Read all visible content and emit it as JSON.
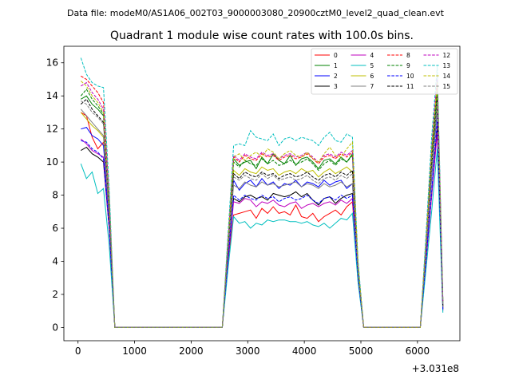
{
  "header": {
    "data_file": "Data file: modeM0/AS1A06_002T03_9000003080_20900cztM0_level2_quad_clean.evt"
  },
  "chart_data": {
    "type": "line",
    "title": "Quadrant 1 module wise count rates with 100.0s bins.",
    "xlabel": "",
    "ylabel": "",
    "x_offset_label": "+3.031e8",
    "xlim": [
      -250,
      6750
    ],
    "ylim": [
      -0.8,
      17.0
    ],
    "xticks": [
      0,
      1000,
      2000,
      3000,
      4000,
      5000,
      6000
    ],
    "yticks": [
      0,
      2,
      4,
      6,
      8,
      10,
      12,
      14,
      16
    ],
    "legend_position": "upper-right",
    "x": [
      50,
      150,
      250,
      350,
      450,
      550,
      650,
      750,
      850,
      950,
      1050,
      1150,
      1250,
      1350,
      1450,
      1550,
      1650,
      1750,
      1850,
      1950,
      2050,
      2150,
      2250,
      2350,
      2450,
      2550,
      2650,
      2750,
      2850,
      2950,
      3050,
      3150,
      3250,
      3350,
      3450,
      3550,
      3650,
      3750,
      3850,
      3950,
      4050,
      4150,
      4250,
      4350,
      4450,
      4550,
      4650,
      4750,
      4850,
      4950,
      5050,
      5150,
      5250,
      5350,
      5450,
      5550,
      5650,
      5750,
      5850,
      5950,
      6050,
      6150,
      6250,
      6350,
      6450
    ],
    "series": [
      {
        "name": "0",
        "color": "#ff0000",
        "dash": "solid",
        "values": [
          13.0,
          12.8,
          11.5,
          10.8,
          11.2,
          7.0,
          0,
          0,
          0,
          0,
          0,
          0,
          0,
          0,
          0,
          0,
          0,
          0,
          0,
          0,
          0,
          0,
          0,
          0,
          0,
          0,
          4.0,
          6.8,
          6.9,
          7.0,
          7.1,
          6.6,
          7.2,
          6.9,
          7.3,
          6.9,
          7.0,
          6.8,
          7.4,
          6.7,
          6.6,
          6.9,
          6.4,
          6.7,
          6.9,
          7.1,
          6.8,
          7.3,
          7.6,
          3.0,
          0,
          0,
          0,
          0,
          0,
          0,
          0,
          0,
          0,
          0,
          0,
          4.0,
          8.0,
          12.3,
          1.2
        ]
      },
      {
        "name": "1",
        "color": "#008000",
        "dash": "solid",
        "values": [
          13.8,
          14.0,
          13.5,
          13.2,
          12.8,
          7.0,
          0,
          0,
          0,
          0,
          0,
          0,
          0,
          0,
          0,
          0,
          0,
          0,
          0,
          0,
          0,
          0,
          0,
          0,
          0,
          0,
          5.0,
          10.2,
          9.8,
          10.0,
          10.1,
          9.6,
          10.3,
          9.9,
          10.5,
          10.1,
          9.9,
          10.4,
          9.8,
          10.2,
          10.3,
          10.0,
          9.6,
          10.1,
          10.2,
          9.9,
          10.3,
          10.0,
          10.5,
          3.5,
          0,
          0,
          0,
          0,
          0,
          0,
          0,
          0,
          0,
          0,
          0,
          5.0,
          10.5,
          14.5,
          1.5
        ]
      },
      {
        "name": "2",
        "color": "#0000ff",
        "dash": "solid",
        "values": [
          12.0,
          12.1,
          11.6,
          11.4,
          11.0,
          6.5,
          0,
          0,
          0,
          0,
          0,
          0,
          0,
          0,
          0,
          0,
          0,
          0,
          0,
          0,
          0,
          0,
          0,
          0,
          0,
          0,
          4.5,
          8.9,
          8.3,
          8.7,
          8.9,
          8.5,
          9.0,
          8.6,
          8.8,
          8.4,
          8.7,
          8.6,
          8.9,
          8.5,
          8.8,
          8.7,
          8.5,
          8.9,
          8.6,
          8.8,
          8.9,
          8.4,
          8.7,
          3.2,
          0,
          0,
          0,
          0,
          0,
          0,
          0,
          0,
          0,
          0,
          0,
          4.5,
          9.0,
          13.2,
          1.3
        ]
      },
      {
        "name": "3",
        "color": "#000000",
        "dash": "solid",
        "values": [
          10.7,
          10.9,
          10.5,
          10.3,
          10.0,
          6.0,
          0,
          0,
          0,
          0,
          0,
          0,
          0,
          0,
          0,
          0,
          0,
          0,
          0,
          0,
          0,
          0,
          0,
          0,
          0,
          0,
          4.0,
          7.8,
          7.6,
          7.9,
          8.0,
          7.8,
          7.9,
          7.7,
          8.1,
          8.0,
          7.9,
          8.0,
          8.2,
          7.9,
          8.1,
          7.7,
          7.4,
          7.8,
          7.9,
          7.5,
          7.8,
          8.0,
          8.1,
          3.0,
          0,
          0,
          0,
          0,
          0,
          0,
          0,
          0,
          0,
          0,
          0,
          4.0,
          8.0,
          12.0,
          1.1
        ]
      },
      {
        "name": "4",
        "color": "#bf00bf",
        "dash": "solid",
        "values": [
          11.4,
          11.1,
          10.7,
          10.5,
          10.3,
          6.0,
          0,
          0,
          0,
          0,
          0,
          0,
          0,
          0,
          0,
          0,
          0,
          0,
          0,
          0,
          0,
          0,
          0,
          0,
          0,
          0,
          4.0,
          7.6,
          7.5,
          7.8,
          7.7,
          7.3,
          7.6,
          7.5,
          7.7,
          7.4,
          7.3,
          7.5,
          7.6,
          7.2,
          7.4,
          7.5,
          7.3,
          7.5,
          7.6,
          7.4,
          7.7,
          7.5,
          7.8,
          2.9,
          0,
          0,
          0,
          0,
          0,
          0,
          0,
          0,
          0,
          0,
          0,
          4.0,
          7.9,
          11.8,
          1.0
        ]
      },
      {
        "name": "5",
        "color": "#00bfbf",
        "dash": "solid",
        "values": [
          9.9,
          9.0,
          9.4,
          8.1,
          8.4,
          5.0,
          0,
          0,
          0,
          0,
          0,
          0,
          0,
          0,
          0,
          0,
          0,
          0,
          0,
          0,
          0,
          0,
          0,
          0,
          0,
          0,
          3.5,
          6.7,
          6.3,
          6.4,
          6.0,
          6.3,
          6.2,
          6.5,
          6.4,
          6.5,
          6.5,
          6.4,
          6.4,
          6.3,
          6.4,
          6.2,
          6.1,
          6.3,
          6.0,
          6.3,
          6.6,
          6.5,
          6.9,
          2.7,
          0,
          0,
          0,
          0,
          0,
          0,
          0,
          0,
          0,
          0,
          0,
          3.5,
          7.0,
          10.8,
          0.9
        ]
      },
      {
        "name": "6",
        "color": "#bfbf00",
        "dash": "solid",
        "values": [
          13.0,
          12.6,
          12.2,
          11.9,
          11.5,
          6.8,
          0,
          0,
          0,
          0,
          0,
          0,
          0,
          0,
          0,
          0,
          0,
          0,
          0,
          0,
          0,
          0,
          0,
          0,
          0,
          0,
          4.8,
          9.5,
          9.2,
          9.6,
          9.4,
          9.3,
          9.7,
          9.5,
          9.6,
          9.2,
          9.4,
          9.5,
          9.3,
          9.6,
          9.4,
          9.5,
          9.1,
          9.4,
          9.6,
          9.3,
          9.5,
          9.7,
          9.4,
          3.4,
          0,
          0,
          0,
          0,
          0,
          0,
          0,
          0,
          0,
          0,
          0,
          4.8,
          9.6,
          13.6,
          1.3
        ]
      },
      {
        "name": "7",
        "color": "#808080",
        "dash": "solid",
        "values": [
          13.2,
          12.8,
          12.4,
          12.0,
          11.6,
          6.9,
          0,
          0,
          0,
          0,
          0,
          0,
          0,
          0,
          0,
          0,
          0,
          0,
          0,
          0,
          0,
          0,
          0,
          0,
          0,
          0,
          4.6,
          8.6,
          8.4,
          8.8,
          8.6,
          8.5,
          8.8,
          8.6,
          8.7,
          8.5,
          8.6,
          8.7,
          8.8,
          8.5,
          8.7,
          8.6,
          8.4,
          8.7,
          8.5,
          8.6,
          8.8,
          8.5,
          8.7,
          3.3,
          0,
          0,
          0,
          0,
          0,
          0,
          0,
          0,
          0,
          0,
          0,
          4.6,
          9.2,
          13.4,
          1.2
        ]
      },
      {
        "name": "8",
        "color": "#ff0000",
        "dash": "dashed",
        "values": [
          15.2,
          15.0,
          14.6,
          14.2,
          13.6,
          8.0,
          0,
          0,
          0,
          0,
          0,
          0,
          0,
          0,
          0,
          0,
          0,
          0,
          0,
          0,
          0,
          0,
          0,
          0,
          0,
          0,
          5.2,
          10.3,
          10.0,
          10.4,
          10.2,
          10.1,
          10.5,
          10.3,
          10.4,
          10.1,
          10.3,
          10.4,
          10.2,
          10.3,
          10.5,
          10.2,
          9.9,
          10.3,
          10.4,
          10.2,
          10.5,
          10.3,
          10.6,
          3.7,
          0,
          0,
          0,
          0,
          0,
          0,
          0,
          0,
          0,
          0,
          0,
          5.2,
          10.8,
          15.0,
          1.6
        ]
      },
      {
        "name": "9",
        "color": "#008000",
        "dash": "dashed",
        "values": [
          14.0,
          14.4,
          13.8,
          13.4,
          12.9,
          7.6,
          0,
          0,
          0,
          0,
          0,
          0,
          0,
          0,
          0,
          0,
          0,
          0,
          0,
          0,
          0,
          0,
          0,
          0,
          0,
          0,
          5.0,
          10.0,
          9.7,
          10.1,
          9.9,
          9.8,
          10.2,
          9.9,
          10.1,
          9.8,
          9.9,
          10.1,
          9.9,
          10.0,
          10.2,
          9.9,
          9.5,
          9.9,
          10.1,
          9.8,
          10.2,
          10.0,
          10.4,
          3.6,
          0,
          0,
          0,
          0,
          0,
          0,
          0,
          0,
          0,
          0,
          0,
          5.0,
          10.4,
          14.2,
          1.5
        ]
      },
      {
        "name": "10",
        "color": "#0000ff",
        "dash": "dashed",
        "values": [
          11.3,
          11.2,
          10.8,
          10.6,
          10.2,
          6.2,
          0,
          0,
          0,
          0,
          0,
          0,
          0,
          0,
          0,
          0,
          0,
          0,
          0,
          0,
          0,
          0,
          0,
          0,
          0,
          0,
          4.1,
          8.0,
          7.7,
          8.0,
          7.8,
          7.7,
          8.0,
          7.8,
          7.9,
          7.6,
          7.8,
          7.9,
          7.7,
          7.8,
          8.0,
          7.7,
          7.5,
          7.8,
          7.9,
          7.7,
          8.0,
          7.8,
          8.0,
          3.0,
          0,
          0,
          0,
          0,
          0,
          0,
          0,
          0,
          0,
          0,
          0,
          4.1,
          8.2,
          12.5,
          1.1
        ]
      },
      {
        "name": "11",
        "color": "#000000",
        "dash": "dashed",
        "values": [
          13.5,
          13.8,
          13.2,
          12.8,
          12.4,
          7.2,
          0,
          0,
          0,
          0,
          0,
          0,
          0,
          0,
          0,
          0,
          0,
          0,
          0,
          0,
          0,
          0,
          0,
          0,
          0,
          0,
          4.8,
          9.3,
          9.0,
          9.4,
          9.2,
          9.1,
          9.4,
          9.2,
          9.3,
          9.0,
          9.2,
          9.3,
          9.1,
          9.2,
          9.4,
          9.1,
          8.9,
          9.2,
          9.3,
          9.1,
          9.4,
          9.2,
          9.5,
          3.4,
          0,
          0,
          0,
          0,
          0,
          0,
          0,
          0,
          0,
          0,
          0,
          4.8,
          9.8,
          13.8,
          1.3
        ]
      },
      {
        "name": "12",
        "color": "#bf00bf",
        "dash": "dashed",
        "values": [
          14.6,
          14.8,
          14.2,
          13.8,
          13.2,
          7.8,
          0,
          0,
          0,
          0,
          0,
          0,
          0,
          0,
          0,
          0,
          0,
          0,
          0,
          0,
          0,
          0,
          0,
          0,
          0,
          0,
          5.2,
          10.4,
          10.1,
          10.5,
          10.3,
          10.2,
          10.6,
          10.4,
          10.5,
          10.2,
          10.4,
          10.5,
          10.3,
          10.4,
          10.6,
          10.3,
          10.0,
          10.4,
          10.5,
          10.3,
          10.6,
          10.4,
          10.7,
          3.8,
          0,
          0,
          0,
          0,
          0,
          0,
          0,
          0,
          0,
          0,
          0,
          5.2,
          10.9,
          15.3,
          1.6
        ]
      },
      {
        "name": "13",
        "color": "#00bfbf",
        "dash": "dashed",
        "values": [
          16.3,
          15.3,
          14.8,
          14.6,
          14.5,
          8.5,
          0,
          0,
          0,
          0,
          0,
          0,
          0,
          0,
          0,
          0,
          0,
          0,
          0,
          0,
          0,
          0,
          0,
          0,
          0,
          0,
          5.6,
          11.0,
          11.1,
          11.0,
          11.9,
          11.5,
          11.4,
          11.3,
          11.7,
          11.0,
          11.4,
          11.5,
          11.3,
          11.5,
          11.4,
          11.3,
          11.0,
          11.5,
          11.8,
          11.3,
          11.2,
          11.7,
          11.5,
          4.0,
          0,
          0,
          0,
          0,
          0,
          0,
          0,
          0,
          0,
          0,
          0,
          5.6,
          11.5,
          15.8,
          1.7
        ]
      },
      {
        "name": "14",
        "color": "#bfbf00",
        "dash": "dashed",
        "values": [
          14.9,
          14.6,
          14.0,
          13.6,
          13.0,
          7.7,
          0,
          0,
          0,
          0,
          0,
          0,
          0,
          0,
          0,
          0,
          0,
          0,
          0,
          0,
          0,
          0,
          0,
          0,
          0,
          0,
          5.1,
          10.3,
          10.5,
          10.1,
          10.4,
          10.6,
          10.3,
          10.8,
          10.6,
          10.2,
          10.5,
          10.7,
          10.4,
          10.3,
          10.6,
          10.2,
          10.0,
          10.5,
          10.9,
          10.4,
          10.3,
          10.8,
          11.2,
          3.7,
          0,
          0,
          0,
          0,
          0,
          0,
          0,
          0,
          0,
          0,
          0,
          5.1,
          10.7,
          14.8,
          1.6
        ]
      },
      {
        "name": "15",
        "color": "#808080",
        "dash": "dashed",
        "values": [
          13.7,
          13.5,
          13.0,
          12.7,
          12.3,
          7.3,
          0,
          0,
          0,
          0,
          0,
          0,
          0,
          0,
          0,
          0,
          0,
          0,
          0,
          0,
          0,
          0,
          0,
          0,
          0,
          0,
          4.7,
          9.1,
          8.9,
          9.2,
          9.0,
          8.9,
          9.3,
          9.0,
          9.2,
          8.9,
          9.0,
          9.1,
          8.9,
          9.0,
          9.2,
          8.9,
          8.7,
          9.0,
          9.1,
          8.9,
          9.2,
          9.0,
          9.3,
          3.3,
          0,
          0,
          0,
          0,
          0,
          0,
          0,
          0,
          0,
          0,
          0,
          4.7,
          9.5,
          13.6,
          1.3
        ]
      }
    ]
  }
}
